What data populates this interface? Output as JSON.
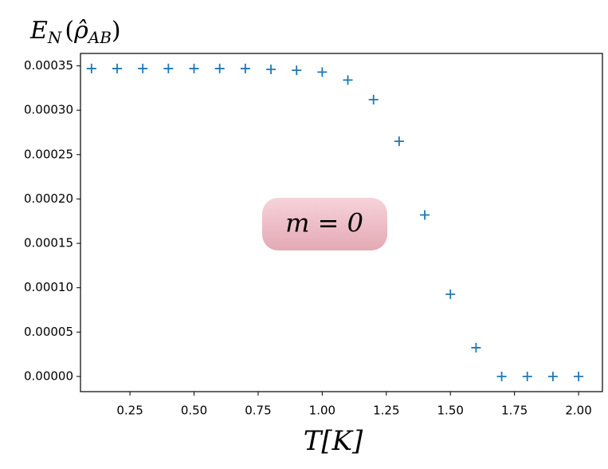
{
  "chart_data": {
    "type": "scatter",
    "ylabel": [
      "E",
      "N",
      "(",
      "ρ̂",
      "AB",
      ")"
    ],
    "xlabel": "T[K]",
    "annotation": "m = 0",
    "marker": "+",
    "series": [
      {
        "name": "E_N",
        "color": "#1f77b4",
        "x": [
          0.1,
          0.2,
          0.3,
          0.4,
          0.5,
          0.6,
          0.7,
          0.8,
          0.9,
          1.0,
          1.1,
          1.2,
          1.3,
          1.4,
          1.5,
          1.6,
          1.7,
          1.8,
          1.9,
          2.0
        ],
        "values": [
          0.000347,
          0.000347,
          0.000347,
          0.000347,
          0.000347,
          0.000347,
          0.000347,
          0.000346,
          0.000345,
          0.000343,
          0.000334,
          0.000312,
          0.000265,
          0.000182,
          9.27e-05,
          3.24e-05,
          0,
          0,
          0,
          0
        ]
      }
    ],
    "xlim": [
      0.057,
      2.093
    ],
    "ylim": [
      -1.71e-05,
      0.000364
    ],
    "xticks": [
      {
        "value": 0.25,
        "label": "0.25"
      },
      {
        "value": 0.5,
        "label": "0.50"
      },
      {
        "value": 0.75,
        "label": "0.75"
      },
      {
        "value": 1.0,
        "label": "1.00"
      },
      {
        "value": 1.25,
        "label": "1.25"
      },
      {
        "value": 1.5,
        "label": "1.50"
      },
      {
        "value": 1.75,
        "label": "1.75"
      },
      {
        "value": 2.0,
        "label": "2.00"
      }
    ],
    "yticks": [
      {
        "value": 0,
        "label": "0.00000"
      },
      {
        "value": 5e-05,
        "label": "0.00005"
      },
      {
        "value": 0.0001,
        "label": "0.00010"
      },
      {
        "value": 0.00015,
        "label": "0.00015"
      },
      {
        "value": 0.0002,
        "label": "0.00020"
      },
      {
        "value": 0.00025,
        "label": "0.00025"
      },
      {
        "value": 0.0003,
        "label": "0.00030"
      },
      {
        "value": 0.00035,
        "label": "0.00035"
      }
    ],
    "grid": false
  }
}
